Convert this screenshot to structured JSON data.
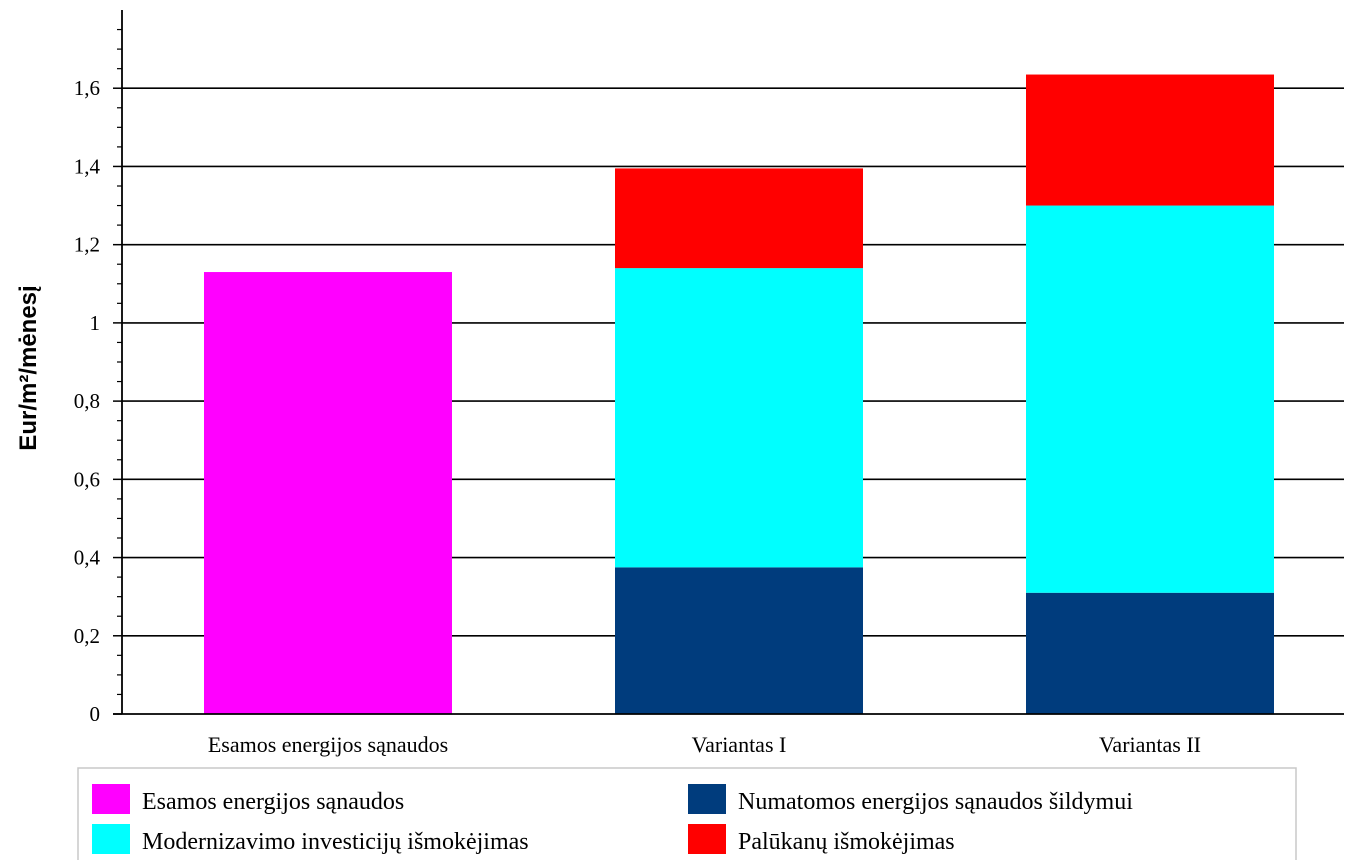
{
  "chart_data": {
    "type": "bar",
    "stacked": true,
    "categories": [
      "Esamos energijos sąnaudos",
      "Variantas I",
      "Variantas II"
    ],
    "series": [
      {
        "name": "Esamos energijos sąnaudos",
        "color": "#ff00ff",
        "values": [
          1.13,
          0,
          0
        ]
      },
      {
        "name": "Numatomos energijos sąnaudos šildymui",
        "color": "#003c7d",
        "values": [
          0,
          0.375,
          0.31
        ]
      },
      {
        "name": "Modernizavimo investicijų išmokėjimas",
        "color": "#00ffff",
        "values": [
          0,
          0.765,
          0.99
        ]
      },
      {
        "name": "Palūkanų išmokėjimas",
        "color": "#ff0000",
        "values": [
          0,
          0.255,
          0.335
        ]
      }
    ],
    "ylabel": "Eur/m²/mėnesį",
    "xlabel": "",
    "title": "",
    "ylim": [
      0,
      1.8
    ],
    "yticks": [
      "0",
      "0,2",
      "0,4",
      "0,6",
      "0,8",
      "1",
      "1,2",
      "1,4",
      "1,6"
    ],
    "grid": true,
    "legend_position": "bottom"
  }
}
